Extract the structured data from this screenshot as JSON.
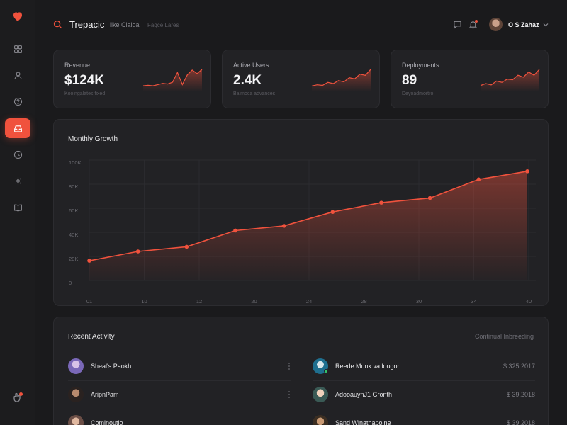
{
  "colors": {
    "accent": "#f0523d",
    "background": "#1a1a1c",
    "card": "#222225",
    "online": "#35c46b"
  },
  "sidebar": {
    "logo_icon": "heart-icon",
    "items": [
      {
        "icon": "grid-icon",
        "active": false
      },
      {
        "icon": "user-icon",
        "active": false
      },
      {
        "icon": "help-icon",
        "active": false
      },
      {
        "icon": "inbox-icon",
        "active": true
      },
      {
        "icon": "clock-icon",
        "active": false
      },
      {
        "icon": "gear-icon",
        "active": false
      },
      {
        "icon": "book-icon",
        "active": false
      }
    ],
    "bottom_icon": "bell-hand-icon"
  },
  "header": {
    "title": "Trepacic",
    "subtitle": "like Claloa",
    "hint": "Faqce Lares",
    "user_name": "O S Zahaz"
  },
  "stats": [
    {
      "label": "Revenue",
      "value": "$124K",
      "sub": "Kooingalates fixed",
      "trend": [
        8,
        9,
        8,
        10,
        12,
        11,
        14,
        30,
        10,
        26,
        34,
        28,
        35
      ]
    },
    {
      "label": "Active Users",
      "value": "2.4K",
      "sub": "Balmoca advances",
      "trend": [
        8,
        10,
        9,
        14,
        12,
        17,
        15,
        22,
        20,
        28,
        26,
        36
      ]
    },
    {
      "label": "Deployments",
      "value": "89",
      "sub": "Deyoadmortro",
      "trend": [
        8,
        11,
        9,
        15,
        13,
        18,
        17,
        24,
        21,
        29,
        24,
        33
      ]
    }
  ],
  "growth": {
    "title": "Monthly Growth"
  },
  "chart_data": {
    "type": "area",
    "title": "Monthly Growth",
    "x_ticks": [
      "01",
      "10",
      "12",
      "20",
      "24",
      "28",
      "30",
      "34",
      "40"
    ],
    "y_ticks": [
      "100K",
      "80K",
      "60K",
      "40K",
      "20K",
      "0"
    ],
    "ylim": [
      0,
      100
    ],
    "x": [
      0,
      1,
      2,
      3,
      4,
      5,
      6,
      7,
      8,
      9
    ],
    "values": [
      17,
      25,
      29,
      43,
      47,
      59,
      67,
      71,
      87,
      94
    ],
    "xlim": [
      0,
      9
    ],
    "grid": true,
    "color": "#f0523d"
  },
  "activity": {
    "title": "Recent Activity",
    "link": "Continual Inbreeding",
    "left": [
      {
        "name": "Sheal's Paokh"
      },
      {
        "name": "AripnPam"
      },
      {
        "name": "Cominoutio"
      }
    ],
    "right": [
      {
        "name": "Reede Munk va lougor",
        "amount": "$ 325.2017",
        "online": true
      },
      {
        "name": "AdooauynJ1 Gronth",
        "amount": "$ 39.2018",
        "online": false
      },
      {
        "name": "Sand Winathapoine",
        "amount": "$ 39.2018",
        "online": false
      }
    ]
  }
}
